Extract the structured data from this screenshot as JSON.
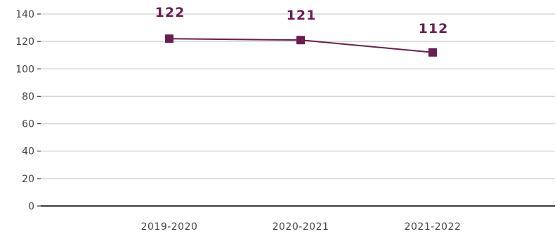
{
  "chart_data": {
    "type": "line",
    "categories": [
      "2019-2020",
      "2020-2021",
      "2021-2022"
    ],
    "series": [
      {
        "values": [
          122,
          121,
          112
        ]
      }
    ],
    "data_labels": [
      "122",
      "121",
      "112"
    ],
    "y_ticks": [
      "0",
      "20",
      "40",
      "60",
      "80",
      "100",
      "120",
      "140"
    ],
    "ylim": [
      0,
      140
    ],
    "grid": true,
    "legend": "none",
    "colors": {
      "series": "#6b1d4f",
      "grid": "#cfcfcf",
      "axis": "#3a3a3a",
      "text": "#444444"
    }
  }
}
